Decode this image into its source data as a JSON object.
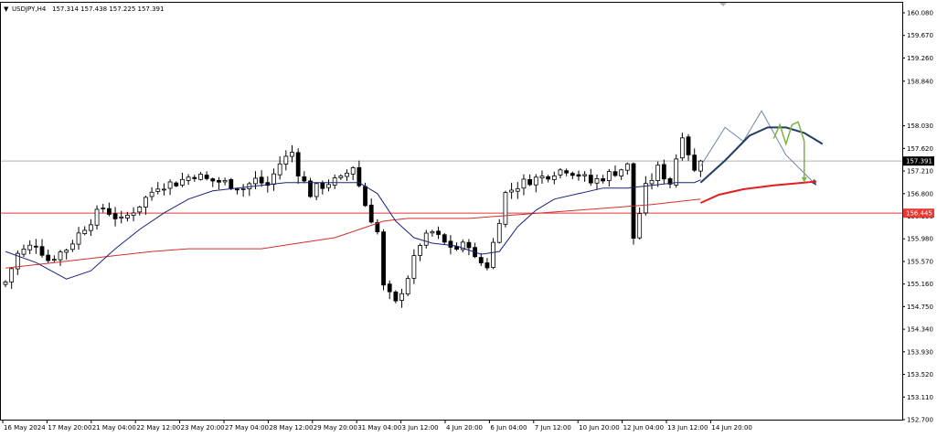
{
  "header": {
    "menu_glyph": "▼",
    "symbol_label": "USDJPY,H4",
    "ohlc_label": "157.314 157.438 157.225 157.391"
  },
  "colors": {
    "background": "#ffffff",
    "frame": "#000000",
    "bull_body": "#ffffff",
    "bear_body": "#000000",
    "candle_outline": "#000000",
    "ma_fast": "#1a237e",
    "ma_slow": "#d32f2f",
    "support_line": "#e53935",
    "current_price_line": "#b0b0b0",
    "forecast_light": "#6f86a6",
    "forecast_dark": "#1f3e66",
    "forecast_red": "#e02020",
    "forecast_green": "#7cb342",
    "price_tag_bg": "#000000",
    "price_tag_text": "#ffffff",
    "support_tag_bg": "#e53935",
    "support_tag_text": "#ffffff"
  },
  "chart_data": {
    "type": "candlestick",
    "symbol": "USDJPY",
    "timeframe": "H4",
    "ylim": [
      152.7,
      160.18
    ],
    "y_ticks": [
      "160.080",
      "159.670",
      "159.260",
      "158.840",
      "158.030",
      "157.620",
      "157.210",
      "156.800",
      "156.390",
      "155.980",
      "155.570",
      "155.160",
      "154.750",
      "154.340",
      "153.930",
      "153.520",
      "153.110",
      "152.700"
    ],
    "x_ticks": [
      "16 May 2024",
      "17 May 20:00",
      "21 May 04:00",
      "22 May 12:00",
      "23 May 20:00",
      "27 May 04:00",
      "28 May 12:00",
      "29 May 20:00",
      "31 May 04:00",
      "3 Jun 12:00",
      "4 Jun 20:00",
      "6 Jun 04:00",
      "7 Jun 12:00",
      "10 Jun 20:00",
      "12 Jun 04:00",
      "13 Jun 12:00",
      "14 Jun 20:00"
    ],
    "current_price": 157.391,
    "current_price_label": "157.391",
    "support_level": 156.445,
    "support_label": "156.445",
    "candle_close_path": [
      [
        0,
        155.2
      ],
      [
        2,
        155.7
      ],
      [
        5,
        155.9
      ],
      [
        7,
        155.6
      ],
      [
        10,
        155.8
      ],
      [
        13,
        156.2
      ],
      [
        16,
        156.55
      ],
      [
        19,
        156.3
      ],
      [
        22,
        156.6
      ],
      [
        25,
        156.95
      ],
      [
        28,
        157.0
      ],
      [
        31,
        157.15
      ],
      [
        33,
        157.05
      ],
      [
        36,
        157.0
      ],
      [
        39,
        156.9
      ],
      [
        41,
        157.05
      ],
      [
        43,
        156.95
      ],
      [
        45,
        157.35
      ],
      [
        47,
        157.55
      ],
      [
        48,
        157.2
      ],
      [
        50,
        156.8
      ],
      [
        51,
        156.9
      ],
      [
        53,
        157.0
      ],
      [
        55,
        157.05
      ],
      [
        57,
        157.3
      ],
      [
        59,
        156.6
      ],
      [
        61,
        156.1
      ],
      [
        62,
        155.1
      ],
      [
        64,
        154.8
      ],
      [
        66,
        155.3
      ],
      [
        68,
        155.9
      ],
      [
        70,
        156.1
      ],
      [
        72,
        155.9
      ],
      [
        74,
        155.8
      ],
      [
        76,
        155.9
      ],
      [
        77,
        155.6
      ],
      [
        79,
        155.5
      ],
      [
        80,
        155.9
      ],
      [
        82,
        156.8
      ],
      [
        84,
        156.95
      ],
      [
        86,
        157.05
      ],
      [
        88,
        157.1
      ],
      [
        90,
        157.2
      ],
      [
        92,
        157.25
      ],
      [
        94,
        157.15
      ],
      [
        96,
        157.0
      ],
      [
        98,
        157.1
      ],
      [
        100,
        157.2
      ],
      [
        102,
        157.3
      ],
      [
        103,
        156.0
      ],
      [
        105,
        156.9
      ],
      [
        107,
        157.25
      ],
      [
        109,
        157.0
      ],
      [
        111,
        157.9
      ],
      [
        113,
        157.2
      ],
      [
        114,
        157.391
      ]
    ],
    "ma_fast": [
      [
        0,
        155.75
      ],
      [
        5,
        155.55
      ],
      [
        10,
        155.25
      ],
      [
        14,
        155.4
      ],
      [
        18,
        155.8
      ],
      [
        22,
        156.15
      ],
      [
        26,
        156.45
      ],
      [
        30,
        156.7
      ],
      [
        34,
        156.85
      ],
      [
        38,
        156.9
      ],
      [
        42,
        156.95
      ],
      [
        46,
        157.0
      ],
      [
        50,
        157.0
      ],
      [
        54,
        157.0
      ],
      [
        58,
        157.0
      ],
      [
        61,
        156.8
      ],
      [
        64,
        156.3
      ],
      [
        67,
        156.0
      ],
      [
        70,
        155.9
      ],
      [
        74,
        155.85
      ],
      [
        78,
        155.7
      ],
      [
        81,
        155.75
      ],
      [
        84,
        156.2
      ],
      [
        87,
        156.5
      ],
      [
        90,
        156.7
      ],
      [
        94,
        156.8
      ],
      [
        98,
        156.9
      ],
      [
        102,
        156.9
      ],
      [
        106,
        156.95
      ],
      [
        110,
        157.0
      ],
      [
        113,
        157.0
      ],
      [
        114,
        157.05
      ]
    ],
    "ma_slow": [
      [
        0,
        155.45
      ],
      [
        8,
        155.55
      ],
      [
        16,
        155.65
      ],
      [
        24,
        155.75
      ],
      [
        30,
        155.8
      ],
      [
        36,
        155.8
      ],
      [
        42,
        155.8
      ],
      [
        48,
        155.9
      ],
      [
        54,
        156.0
      ],
      [
        58,
        156.15
      ],
      [
        62,
        156.3
      ],
      [
        66,
        156.35
      ],
      [
        70,
        156.35
      ],
      [
        76,
        156.35
      ],
      [
        82,
        156.4
      ],
      [
        88,
        156.45
      ],
      [
        94,
        156.5
      ],
      [
        100,
        156.55
      ],
      [
        106,
        156.6
      ],
      [
        110,
        156.65
      ],
      [
        114,
        156.7
      ]
    ],
    "forecast_light": [
      [
        114,
        157.3
      ],
      [
        118,
        158.0
      ],
      [
        121,
        157.75
      ],
      [
        124,
        158.3
      ],
      [
        126,
        157.9
      ],
      [
        128,
        157.5
      ],
      [
        133,
        156.95
      ]
    ],
    "forecast_dark": [
      [
        114,
        157.0
      ],
      [
        118,
        157.4
      ],
      [
        122,
        157.85
      ],
      [
        125,
        158.0
      ],
      [
        128,
        158.0
      ],
      [
        131,
        157.9
      ],
      [
        134,
        157.7
      ]
    ],
    "forecast_red": [
      [
        114,
        156.63
      ],
      [
        117,
        156.78
      ],
      [
        121,
        156.88
      ],
      [
        126,
        156.95
      ],
      [
        131,
        157.0
      ],
      [
        133,
        157.02
      ]
    ],
    "forecast_green": [
      [
        126,
        157.8
      ],
      [
        127,
        158.05
      ],
      [
        128,
        157.7
      ],
      [
        129,
        158.05
      ],
      [
        130,
        158.1
      ],
      [
        131,
        157.75
      ],
      [
        131,
        157.05
      ]
    ]
  }
}
